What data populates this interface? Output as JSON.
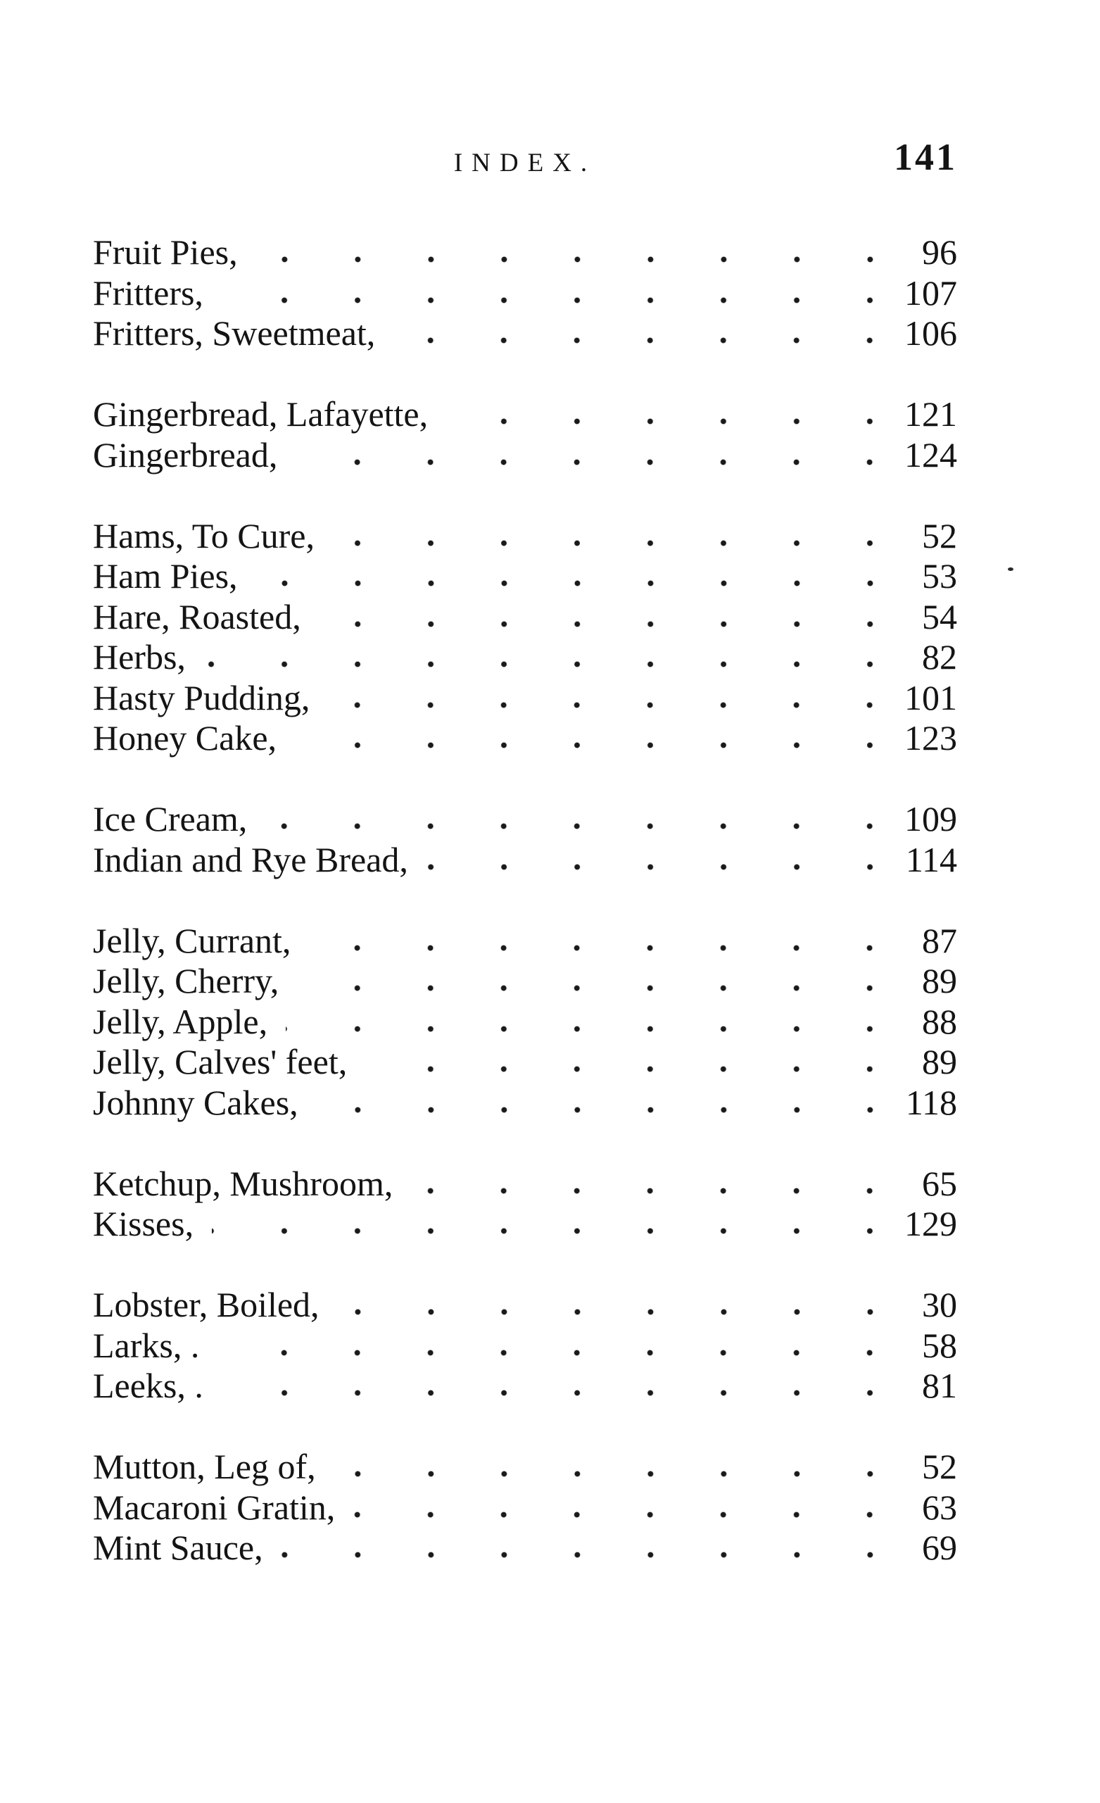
{
  "header": {
    "title": "INDEX.",
    "page_number": "141"
  },
  "index": {
    "groups": [
      {
        "entries": [
          {
            "label": "Fruit Pies,",
            "page": "96"
          },
          {
            "label": "Fritters,",
            "page": "107"
          },
          {
            "label": "Fritters, Sweetmeat,",
            "page": "106"
          }
        ]
      },
      {
        "entries": [
          {
            "label": "Gingerbread, Lafayette,",
            "page": "121"
          },
          {
            "label": "Gingerbread,",
            "page": "124"
          }
        ]
      },
      {
        "entries": [
          {
            "label": "Hams, To Cure,",
            "page": "52"
          },
          {
            "label": "Ham Pies,",
            "page": "53"
          },
          {
            "label": "Hare, Roasted,",
            "page": "54"
          },
          {
            "label": "Herbs,",
            "page": "82"
          },
          {
            "label": "Hasty Pudding,",
            "page": "101"
          },
          {
            "label": "Honey Cake,",
            "page": "123"
          }
        ]
      },
      {
        "entries": [
          {
            "label": "Ice Cream,",
            "page": "109"
          },
          {
            "label": "Indian and Rye Bread,",
            "page": "114"
          }
        ]
      },
      {
        "entries": [
          {
            "label": "Jelly, Currant,",
            "page": "87"
          },
          {
            "label": "Jelly, Cherry,",
            "page": "89"
          },
          {
            "label": "Jelly, Apple,",
            "page": "88"
          },
          {
            "label": "Jelly, Calves' feet,",
            "page": "89"
          },
          {
            "label": "Johnny Cakes,",
            "page": "118"
          }
        ]
      },
      {
        "entries": [
          {
            "label": "Ketchup, Mushroom,",
            "page": "65"
          },
          {
            "label": "Kisses,",
            "page": "129"
          }
        ]
      },
      {
        "entries": [
          {
            "label": "Lobster, Boiled,",
            "page": "30"
          },
          {
            "label": "Larks, .",
            "page": "58"
          },
          {
            "label": "Leeks, .",
            "page": "81"
          }
        ]
      },
      {
        "entries": [
          {
            "label": "Mutton, Leg of,",
            "page": "52"
          },
          {
            "label": "Macaroni Gratin,",
            "page": "63"
          },
          {
            "label": "Mint Sauce,",
            "page": "69"
          }
        ]
      }
    ]
  }
}
